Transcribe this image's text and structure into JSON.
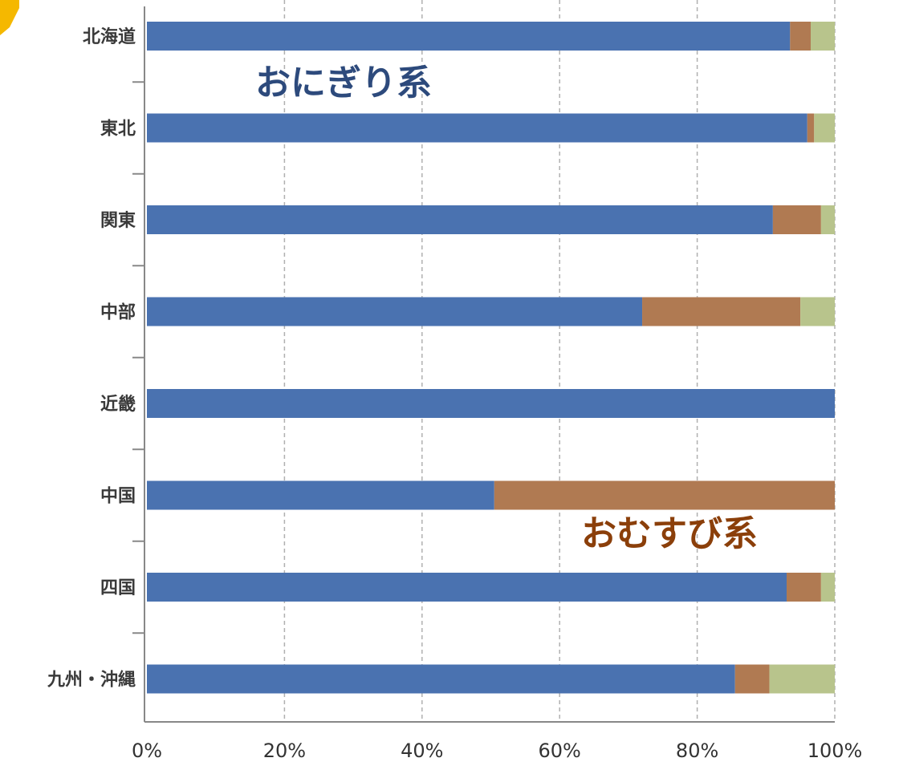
{
  "colors": {
    "series_1": "#4a72b0",
    "series_2": "#b07a52",
    "series_3": "#b8c48c",
    "grid": "#b0b0b0",
    "axis": "#888888",
    "label_series_1": "#2d4a7c",
    "label_series_2": "#8b3f0a",
    "corner_tab": "#f5b800"
  },
  "chart_data": {
    "type": "bar",
    "orientation": "horizontal",
    "stacked": true,
    "categories": [
      "北海道",
      "東北",
      "関東",
      "中部",
      "近畿",
      "中国",
      "四国",
      "九州・沖縄"
    ],
    "series": [
      {
        "name": "おにぎり系",
        "values": [
          93.5,
          96,
          91,
          72,
          100,
          50.5,
          93,
          85.5
        ]
      },
      {
        "name": "おむすび系",
        "values": [
          3,
          1,
          7,
          23,
          0,
          49.5,
          5,
          5
        ]
      },
      {
        "values": [
          3.5,
          3,
          2,
          5,
          0,
          0,
          2,
          9.5
        ]
      }
    ],
    "xlim": [
      0,
      100
    ],
    "x_ticks": [
      "0%",
      "20%",
      "40%",
      "60%",
      "80%",
      "100%"
    ],
    "grid": true,
    "legend": "none"
  }
}
